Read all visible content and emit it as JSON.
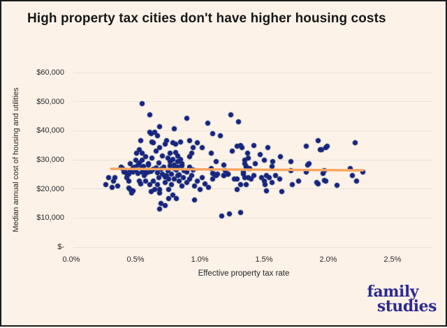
{
  "page": {
    "background": "#fcf2e8",
    "border_color": "#1b1b1b"
  },
  "title": {
    "text": "High property tax cities don't have higher housing costs"
  },
  "logo": {
    "line1": "family",
    "line2": "studies",
    "color": "#2e2a92"
  },
  "chart_data": {
    "type": "scatter",
    "title": "High property tax cities don't have higher housing costs",
    "xlabel": "Effective property tax rate",
    "ylabel": "Median annual cost of housing and utilities",
    "xlim": [
      0,
      2.5
    ],
    "ylim": [
      0,
      60000
    ],
    "grid": "horizontal",
    "legend": "none",
    "point_color": "#1a2281",
    "trend_color": "#f7a65f",
    "x_ticks": [
      {
        "label": "0.0%",
        "value": 0
      },
      {
        "label": "0.5%",
        "value": 0.5
      },
      {
        "label": "1.0%",
        "value": 1.0
      },
      {
        "label": "1.5%",
        "value": 1.5
      },
      {
        "label": "2.0%",
        "value": 2.0
      },
      {
        "label": "2.5%",
        "value": 2.5
      }
    ],
    "y_ticks": [
      {
        "label": "$-",
        "value": 0
      },
      {
        "label": "$10,000",
        "value": 10000
      },
      {
        "label": "$20,000",
        "value": 20000
      },
      {
        "label": "$30,000",
        "value": 30000
      },
      {
        "label": "$40,000",
        "value": 40000
      },
      {
        "label": "$50,000",
        "value": 50000
      },
      {
        "label": "$60,000",
        "value": 60000
      }
    ],
    "trend_line": {
      "x": [
        0.31,
        2.27
      ],
      "y": [
        26900,
        26400
      ]
    },
    "points": [
      [
        0.55,
        49400
      ],
      [
        0.61,
        45400
      ],
      [
        0.9,
        44200
      ],
      [
        1.24,
        45400
      ],
      [
        1.3,
        43200
      ],
      [
        0.69,
        41500
      ],
      [
        0.8,
        40800
      ],
      [
        1.06,
        42500
      ],
      [
        1.1,
        38900
      ],
      [
        1.16,
        38400
      ],
      [
        0.61,
        39400
      ],
      [
        0.65,
        39600
      ],
      [
        0.67,
        38400
      ],
      [
        0.54,
        36700
      ],
      [
        0.63,
        36200
      ],
      [
        0.74,
        36500
      ],
      [
        0.79,
        36000
      ],
      [
        0.85,
        36200
      ],
      [
        0.92,
        36500
      ],
      [
        0.98,
        36000
      ],
      [
        0.62,
        38900
      ],
      [
        0.95,
        34100
      ],
      [
        0.66,
        33100
      ],
      [
        0.53,
        33600
      ],
      [
        0.51,
        32200
      ],
      [
        0.55,
        32400
      ],
      [
        0.58,
        31200
      ],
      [
        1.02,
        34100
      ],
      [
        0.81,
        35500
      ],
      [
        0.73,
        35500
      ],
      [
        0.64,
        36000
      ],
      [
        0.69,
        34100
      ],
      [
        0.71,
        31400
      ],
      [
        0.75,
        30700
      ],
      [
        0.77,
        32200
      ],
      [
        0.81,
        32600
      ],
      [
        0.83,
        31400
      ],
      [
        0.94,
        32400
      ],
      [
        0.92,
        31200
      ],
      [
        1.09,
        32200
      ],
      [
        0.55,
        29800
      ],
      [
        0.5,
        29800
      ],
      [
        0.46,
        28800
      ],
      [
        0.49,
        27600
      ],
      [
        0.52,
        28300
      ],
      [
        0.79,
        30200
      ],
      [
        0.77,
        29300
      ],
      [
        0.8,
        28300
      ],
      [
        0.83,
        29300
      ],
      [
        0.85,
        30200
      ],
      [
        0.86,
        28800
      ],
      [
        0.83,
        27400
      ],
      [
        0.53,
        29000
      ],
      [
        0.6,
        28100
      ],
      [
        1.13,
        29300
      ],
      [
        1.19,
        28300
      ],
      [
        1.09,
        27100
      ],
      [
        1.1,
        25400
      ],
      [
        1.14,
        25000
      ],
      [
        1.19,
        24700
      ],
      [
        1.22,
        25000
      ],
      [
        1.35,
        28800
      ],
      [
        1.36,
        27400
      ],
      [
        1.39,
        26900
      ],
      [
        1.34,
        25900
      ],
      [
        1.37,
        32400
      ],
      [
        1.38,
        30700
      ],
      [
        1.29,
        34600
      ],
      [
        1.32,
        35000
      ],
      [
        1.25,
        33100
      ],
      [
        1.33,
        34100
      ],
      [
        1.42,
        35000
      ],
      [
        1.53,
        34100
      ],
      [
        1.47,
        31900
      ],
      [
        1.35,
        30000
      ],
      [
        1.43,
        28800
      ],
      [
        1.57,
        29300
      ],
      [
        1.63,
        31000
      ],
      [
        1.71,
        29300
      ],
      [
        1.56,
        27800
      ],
      [
        1.5,
        30000
      ],
      [
        1.36,
        27800
      ],
      [
        1.84,
        28300
      ],
      [
        1.11,
        25000
      ],
      [
        1.2,
        26200
      ],
      [
        1.27,
        23500
      ],
      [
        1.29,
        23300
      ],
      [
        1.34,
        25200
      ],
      [
        1.35,
        23800
      ],
      [
        1.38,
        24000
      ],
      [
        1.4,
        23300
      ],
      [
        1.42,
        24500
      ],
      [
        1.32,
        21400
      ],
      [
        1.36,
        21400
      ],
      [
        1.29,
        19900
      ],
      [
        1.48,
        24000
      ],
      [
        1.5,
        22800
      ],
      [
        1.52,
        24700
      ],
      [
        1.54,
        23800
      ],
      [
        1.51,
        21400
      ],
      [
        1.56,
        22300
      ],
      [
        1.59,
        24500
      ],
      [
        1.62,
        23300
      ],
      [
        1.52,
        19400
      ],
      [
        1.64,
        19000
      ],
      [
        1.72,
        21400
      ],
      [
        1.77,
        22800
      ],
      [
        1.83,
        25900
      ],
      [
        1.91,
        22100
      ],
      [
        1.97,
        23000
      ],
      [
        1.71,
        26200
      ],
      [
        1.22,
        25200
      ],
      [
        1.19,
        24500
      ],
      [
        1.92,
        36700
      ],
      [
        1.83,
        34800
      ],
      [
        1.95,
        33600
      ],
      [
        1.99,
        34800
      ],
      [
        2.21,
        35800
      ],
      [
        1.94,
        33400
      ],
      [
        1.98,
        34300
      ],
      [
        1.85,
        28800
      ],
      [
        1.97,
        26200
      ],
      [
        1.96,
        25400
      ],
      [
        2.17,
        26900
      ],
      [
        2.19,
        24700
      ],
      [
        2.27,
        25700
      ],
      [
        2.22,
        22800
      ],
      [
        1.92,
        21800
      ],
      [
        1.98,
        22600
      ],
      [
        2.07,
        21200
      ],
      [
        1.17,
        10600
      ],
      [
        1.23,
        11500
      ],
      [
        1.32,
        11800
      ],
      [
        0.69,
        13000
      ],
      [
        0.73,
        14200
      ],
      [
        0.7,
        15100
      ],
      [
        0.82,
        16600
      ],
      [
        0.76,
        16600
      ],
      [
        0.96,
        16100
      ],
      [
        0.79,
        18000
      ],
      [
        0.69,
        18500
      ],
      [
        0.47,
        18500
      ],
      [
        0.62,
        19000
      ],
      [
        0.29,
        24000
      ],
      [
        0.33,
        22600
      ],
      [
        0.27,
        21600
      ],
      [
        0.32,
        20600
      ],
      [
        0.34,
        23800
      ],
      [
        0.36,
        20900
      ],
      [
        0.39,
        27400
      ],
      [
        0.41,
        25900
      ],
      [
        0.45,
        25000
      ],
      [
        0.47,
        26400
      ],
      [
        0.43,
        23800
      ],
      [
        0.45,
        22600
      ],
      [
        0.48,
        25700
      ],
      [
        0.55,
        25900
      ],
      [
        0.6,
        25700
      ],
      [
        0.53,
        22800
      ],
      [
        0.54,
        21800
      ],
      [
        0.58,
        22600
      ],
      [
        0.61,
        21400
      ],
      [
        0.46,
        19700
      ],
      [
        0.45,
        20400
      ],
      [
        0.48,
        19400
      ],
      [
        0.65,
        19700
      ],
      [
        0.64,
        22600
      ],
      [
        0.67,
        21600
      ],
      [
        0.68,
        24000
      ],
      [
        0.71,
        25200
      ],
      [
        0.74,
        24500
      ],
      [
        0.73,
        22100
      ],
      [
        0.76,
        23300
      ],
      [
        0.69,
        19900
      ],
      [
        0.78,
        21400
      ],
      [
        0.8,
        23300
      ],
      [
        0.83,
        24500
      ],
      [
        0.84,
        22600
      ],
      [
        0.87,
        23800
      ],
      [
        0.86,
        20900
      ],
      [
        0.9,
        22100
      ],
      [
        0.92,
        23300
      ],
      [
        0.76,
        19900
      ],
      [
        0.94,
        24500
      ],
      [
        0.98,
        22600
      ],
      [
        0.96,
        20900
      ],
      [
        1.0,
        19700
      ],
      [
        1.02,
        23800
      ],
      [
        1.04,
        21800
      ],
      [
        1.07,
        20600
      ],
      [
        1.1,
        23300
      ],
      [
        1.13,
        24700
      ],
      [
        0.5,
        26500
      ],
      [
        0.52,
        25300
      ],
      [
        0.56,
        27800
      ],
      [
        0.57,
        24600
      ],
      [
        0.6,
        28600
      ],
      [
        0.62,
        26000
      ],
      [
        0.63,
        30500
      ],
      [
        0.66,
        27200
      ],
      [
        0.67,
        25500
      ],
      [
        0.68,
        28900
      ],
      [
        0.7,
        26800
      ],
      [
        0.72,
        27600
      ],
      [
        0.73,
        24200
      ],
      [
        0.75,
        26300
      ],
      [
        0.77,
        28000
      ],
      [
        0.78,
        25000
      ],
      [
        0.8,
        27000
      ],
      [
        0.82,
        26500
      ],
      [
        0.84,
        24800
      ],
      [
        0.86,
        27900
      ],
      [
        0.88,
        26200
      ],
      [
        0.9,
        25800
      ],
      [
        0.92,
        27400
      ],
      [
        0.95,
        26600
      ],
      [
        0.48,
        27300
      ],
      [
        0.46,
        26100
      ],
      [
        0.44,
        24900
      ],
      [
        0.42,
        25800
      ],
      [
        0.4,
        27100
      ],
      [
        0.58,
        26200
      ],
      [
        0.55,
        27400
      ],
      [
        0.58,
        25400
      ],
      [
        0.64,
        26800
      ]
    ]
  }
}
